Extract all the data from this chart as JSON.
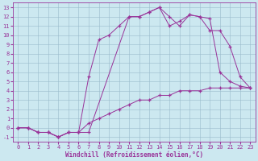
{
  "xlabel": "Windchill (Refroidissement éolien,°C)",
  "ylabel": "",
  "xlim": [
    -0.5,
    23.5
  ],
  "ylim": [
    -1.5,
    13.5
  ],
  "xticks": [
    0,
    1,
    2,
    3,
    4,
    5,
    6,
    7,
    8,
    9,
    10,
    11,
    12,
    13,
    14,
    15,
    16,
    17,
    18,
    19,
    20,
    21,
    22,
    23
  ],
  "yticks": [
    -1,
    0,
    1,
    2,
    3,
    4,
    5,
    6,
    7,
    8,
    9,
    10,
    11,
    12,
    13
  ],
  "bg_color": "#cce8f0",
  "line_color": "#993399",
  "grid_color": "#99bbcc",
  "line1_x": [
    0,
    1,
    2,
    3,
    4,
    5,
    6,
    7,
    11,
    12,
    13,
    14,
    15,
    16,
    17,
    18,
    19,
    20,
    21,
    22,
    23
  ],
  "line1_y": [
    0,
    0,
    -0.5,
    -0.5,
    -1,
    -0.5,
    -0.5,
    -0.5,
    12,
    12,
    12.5,
    13,
    12,
    11,
    12.2,
    12,
    11.8,
    6,
    5,
    4.5,
    4.3
  ],
  "line2_x": [
    0,
    1,
    2,
    3,
    4,
    5,
    6,
    7,
    8,
    9,
    10,
    11,
    12,
    13,
    14,
    15,
    16,
    17,
    18,
    19,
    20,
    21,
    22,
    23
  ],
  "line2_y": [
    0,
    0,
    -0.5,
    -0.5,
    -1,
    -0.5,
    -0.5,
    5.5,
    9.5,
    10,
    11,
    12,
    12,
    12.5,
    13,
    11,
    11.5,
    12.2,
    12,
    10.5,
    10.5,
    8.8,
    5.5,
    4.3
  ],
  "line3_x": [
    0,
    1,
    2,
    3,
    4,
    5,
    6,
    7,
    8,
    9,
    10,
    11,
    12,
    13,
    14,
    15,
    16,
    17,
    18,
    19,
    20,
    21,
    22,
    23
  ],
  "line3_y": [
    0,
    0,
    -0.5,
    -0.5,
    -1,
    -0.5,
    -0.5,
    0.5,
    1.0,
    1.5,
    2.0,
    2.5,
    3.0,
    3.0,
    3.5,
    3.5,
    4.0,
    4.0,
    4.0,
    4.3,
    4.3,
    4.3,
    4.3,
    4.3
  ],
  "tick_fontsize": 5,
  "xlabel_fontsize": 5.5
}
